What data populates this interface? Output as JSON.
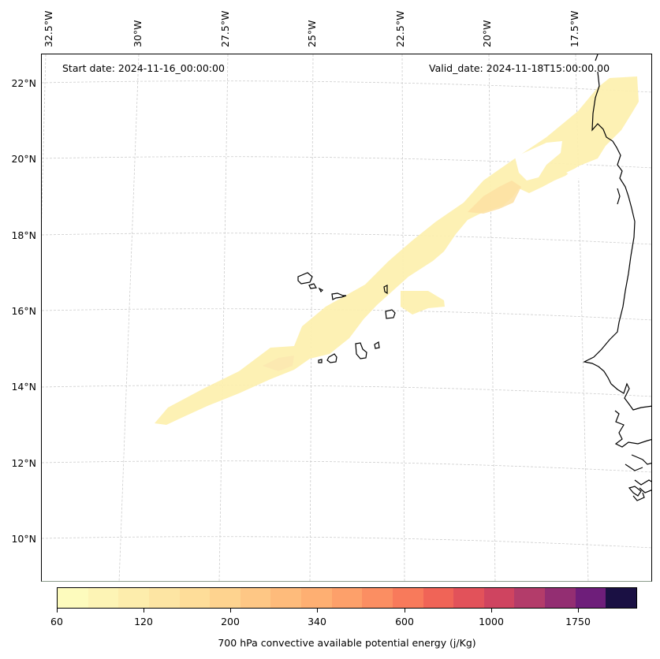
{
  "header": {
    "start_date": "Start date: 2024-11-16_00:00:00",
    "valid_date": "Valid_date: 2024-11-18T15:00:00.00"
  },
  "map": {
    "longitude_labels": [
      "32.5°W",
      "30°W",
      "27.5°W",
      "25°W",
      "22.5°W",
      "20°W",
      "17.5°W"
    ],
    "latitude_labels": [
      "22°N",
      "20°N",
      "18°N",
      "16°N",
      "14°N",
      "12°N",
      "10°N"
    ],
    "field": "700 hPa convective available potential energy",
    "gridline_color": "#cccccc",
    "coastline_color": "#000000"
  },
  "colorbar": {
    "title": "700 hPa convective available potential energy (j/Kg)",
    "tick_labels": [
      "60",
      "120",
      "200",
      "340",
      "600",
      "1000",
      "1750"
    ],
    "colors": [
      "#fdfbbd",
      "#fdf4b5",
      "#fdedac",
      "#fde5a3",
      "#fedd99",
      "#fed38f",
      "#fec785",
      "#febb7b",
      "#feaf72",
      "#fda06a",
      "#fb8e62",
      "#f87a5b",
      "#f06457",
      "#e2525a",
      "#cf4460",
      "#b33c6a",
      "#932e72",
      "#6e1e7a",
      "#1a1043"
    ]
  }
}
